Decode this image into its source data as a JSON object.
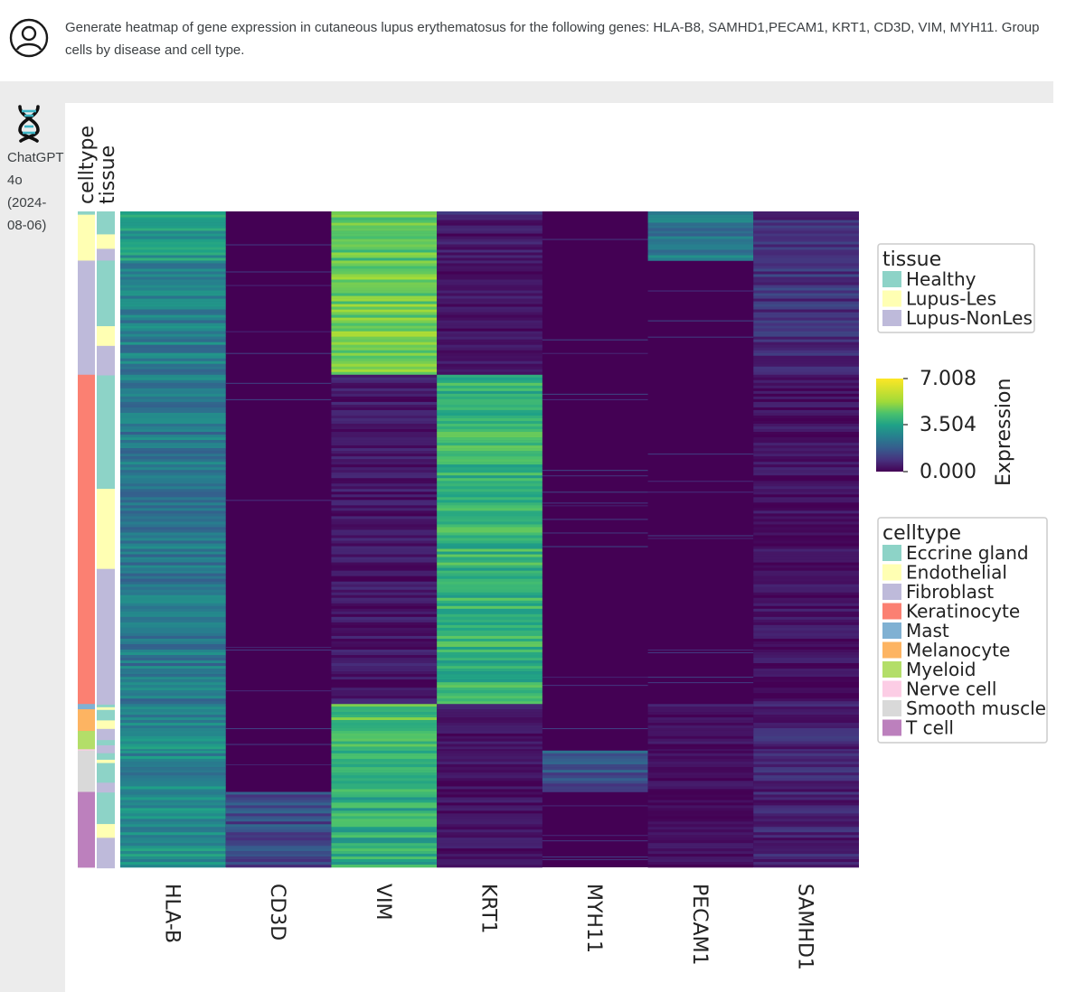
{
  "user": {
    "avatar_icon": "user-icon",
    "message": "Generate heatmap of gene expression in cutaneous lupus erythematosus for the following genes: HLA-B8, SAMHD1,PECAM1, KRT1, CD3D, VIM, MYH11. Group cells by disease and cell type."
  },
  "assistant": {
    "icon": "dna-icon",
    "label": "ChatGPT 4o (2024-08-06)"
  },
  "chart_data": {
    "type": "heatmap",
    "genes": [
      "HLA-B",
      "CD3D",
      "VIM",
      "KRT1",
      "MYH11",
      "PECAM1",
      "SAMHD1"
    ],
    "annotation_tracks": [
      "celltype",
      "tissue"
    ],
    "colorbar": {
      "label": "Expression",
      "min": 0.0,
      "max": 7.008,
      "ticks": [
        "7.008",
        "3.504",
        "0.000"
      ]
    },
    "tissue_legend": {
      "title": "tissue",
      "items": [
        {
          "label": "Healthy",
          "color": "#8dd3c7"
        },
        {
          "label": "Lupus-Les",
          "color": "#ffffb3"
        },
        {
          "label": "Lupus-NonLes",
          "color": "#bebada"
        }
      ]
    },
    "celltype_legend": {
      "title": "celltype",
      "items": [
        {
          "label": "Eccrine gland",
          "color": "#8dd3c7"
        },
        {
          "label": "Endothelial",
          "color": "#ffffb3"
        },
        {
          "label": "Fibroblast",
          "color": "#bebada"
        },
        {
          "label": "Keratinocyte",
          "color": "#fb8072"
        },
        {
          "label": "Mast",
          "color": "#80b1d3"
        },
        {
          "label": "Melanocyte",
          "color": "#fdb462"
        },
        {
          "label": "Myeloid",
          "color": "#b3de69"
        },
        {
          "label": "Nerve cell",
          "color": "#fccde5"
        },
        {
          "label": "Smooth muscle",
          "color": "#d9d9d9"
        },
        {
          "label": "T cell",
          "color": "#bc80bd"
        }
      ]
    },
    "celltype_blocks": [
      {
        "celltype": "Eccrine gland",
        "fraction": 0.005
      },
      {
        "celltype": "Endothelial",
        "fraction": 0.07
      },
      {
        "celltype": "Fibroblast",
        "fraction": 0.174
      },
      {
        "celltype": "Keratinocyte",
        "fraction": 0.502
      },
      {
        "celltype": "Mast",
        "fraction": 0.008
      },
      {
        "celltype": "Melanocyte",
        "fraction": 0.033
      },
      {
        "celltype": "Myeloid",
        "fraction": 0.028
      },
      {
        "celltype": "Nerve cell",
        "fraction": 0.002
      },
      {
        "celltype": "Smooth muscle",
        "fraction": 0.063
      },
      {
        "celltype": "T cell",
        "fraction": 0.115
      }
    ],
    "tissue_blocks": [
      {
        "tissue": "Healthy",
        "fraction": 0.002
      },
      {
        "tissue": "Healthy",
        "fraction": 0.033
      },
      {
        "tissue": "Lupus-Les",
        "fraction": 0.022
      },
      {
        "tissue": "Lupus-NonLes",
        "fraction": 0.018
      },
      {
        "tissue": "Healthy",
        "fraction": 0.1
      },
      {
        "tissue": "Lupus-Les",
        "fraction": 0.03
      },
      {
        "tissue": "Lupus-NonLes",
        "fraction": 0.045
      },
      {
        "tissue": "Healthy",
        "fraction": 0.173
      },
      {
        "tissue": "Lupus-Les",
        "fraction": 0.122
      },
      {
        "tissue": "Lupus-NonLes",
        "fraction": 0.207
      },
      {
        "tissue": "Healthy",
        "fraction": 0.004
      },
      {
        "tissue": "Lupus-Les",
        "fraction": 0.004
      },
      {
        "tissue": "Healthy",
        "fraction": 0.016
      },
      {
        "tissue": "Lupus-Les",
        "fraction": 0.013
      },
      {
        "tissue": "Lupus-NonLes",
        "fraction": 0.017
      },
      {
        "tissue": "Healthy",
        "fraction": 0.008
      },
      {
        "tissue": "Lupus-NonLes",
        "fraction": 0.012
      },
      {
        "tissue": "Healthy",
        "fraction": 0.01
      },
      {
        "tissue": "Lupus-Les",
        "fraction": 0.005
      },
      {
        "tissue": "Healthy",
        "fraction": 0.03
      },
      {
        "tissue": "Lupus-NonLes",
        "fraction": 0.015
      },
      {
        "tissue": "Healthy",
        "fraction": 0.048
      },
      {
        "tissue": "Lupus-Les",
        "fraction": 0.021
      },
      {
        "tissue": "Lupus-NonLes",
        "fraction": 0.046
      }
    ],
    "mean_expression": {
      "columns": [
        "HLA-B",
        "CD3D",
        "VIM",
        "KRT1",
        "MYH11",
        "PECAM1",
        "SAMHD1"
      ],
      "rows": [
        {
          "celltype": "Eccrine gland",
          "values": [
            3.3,
            0.1,
            4.6,
            0.6,
            0.1,
            2.2,
            0.9
          ]
        },
        {
          "celltype": "Endothelial",
          "values": [
            3.4,
            0.1,
            4.6,
            0.4,
            0.1,
            2.4,
            0.8
          ]
        },
        {
          "celltype": "Fibroblast",
          "values": [
            2.6,
            0.1,
            4.8,
            0.3,
            0.1,
            0.1,
            0.9
          ]
        },
        {
          "celltype": "Keratinocyte",
          "values": [
            2.5,
            0.1,
            0.4,
            4.0,
            0.1,
            0.1,
            0.3
          ]
        },
        {
          "celltype": "Mast",
          "values": [
            2.8,
            0.1,
            4.2,
            0.3,
            0.1,
            0.3,
            0.6
          ]
        },
        {
          "celltype": "Melanocyte",
          "values": [
            2.8,
            0.1,
            4.3,
            0.3,
            0.1,
            0.2,
            0.6
          ]
        },
        {
          "celltype": "Myeloid",
          "values": [
            3.0,
            0.1,
            4.2,
            0.3,
            0.1,
            0.2,
            0.7
          ]
        },
        {
          "celltype": "Nerve cell",
          "values": [
            2.8,
            0.1,
            4.2,
            0.3,
            0.1,
            0.2,
            0.6
          ]
        },
        {
          "celltype": "Smooth muscle",
          "values": [
            2.8,
            0.1,
            4.1,
            0.3,
            1.6,
            0.2,
            0.6
          ]
        },
        {
          "celltype": "T cell",
          "values": [
            3.0,
            1.4,
            3.8,
            0.3,
            0.1,
            0.2,
            0.6
          ]
        }
      ]
    }
  }
}
